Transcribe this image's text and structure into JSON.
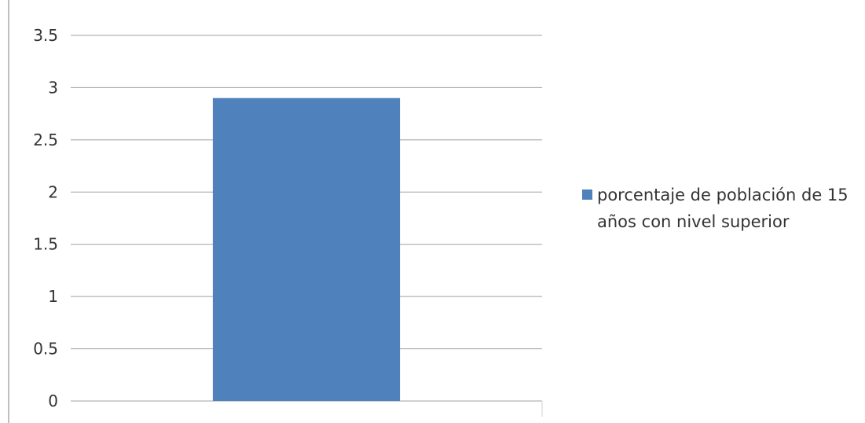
{
  "chart_data": {
    "type": "bar",
    "categories": [
      ""
    ],
    "series": [
      {
        "name": "porcentaje de población de 15 años con nivel superior",
        "values": [
          2.9
        ]
      }
    ],
    "title": "",
    "xlabel": "",
    "ylabel": "",
    "ylim": [
      0,
      3.5
    ],
    "yticks": [
      "0",
      "0.5",
      "1",
      "1.5",
      "2",
      "2.5",
      "3",
      "3.5"
    ],
    "grid": true,
    "legend_position": "right",
    "bar_color": "#4f81bd",
    "gridline_color": "#a0a0a0",
    "axis_color": "#7f7f7f"
  }
}
